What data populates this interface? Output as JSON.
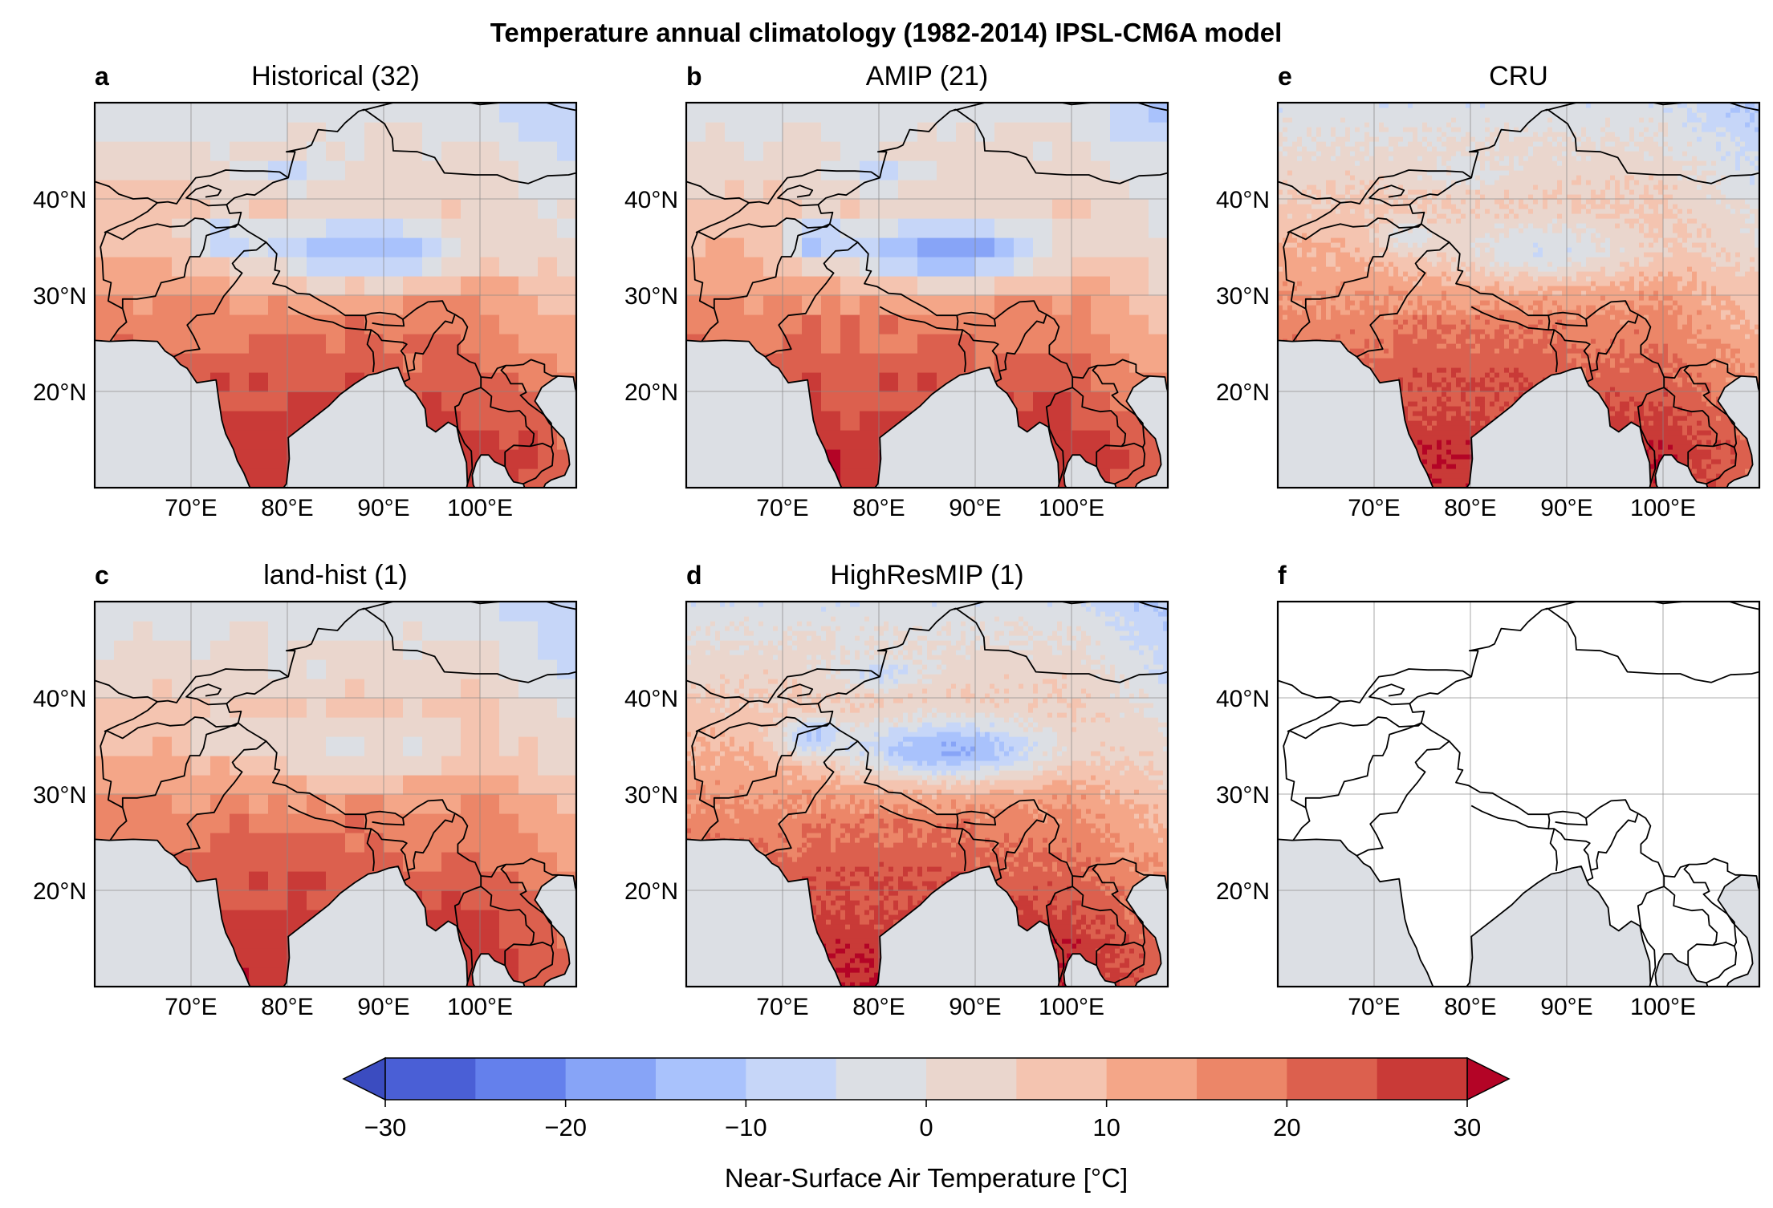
{
  "title": "Temperature annual climatology (1982-2014) IPSL-CM6A model",
  "panels": [
    {
      "letter": "a",
      "title": "Historical (32)",
      "field": "coarse",
      "cold": 1.0
    },
    {
      "letter": "b",
      "title": "AMIP (21)",
      "field": "coarse",
      "cold": 1.15
    },
    {
      "letter": "e",
      "title": "CRU",
      "field": "fine",
      "cold": 0.55
    },
    {
      "letter": "c",
      "title": "land-hist (1)",
      "field": "coarse",
      "cold": 0.45
    },
    {
      "letter": "d",
      "title": "HighResMIP (1)",
      "field": "fine",
      "cold": 1.0
    },
    {
      "letter": "f",
      "title": "",
      "field": "none",
      "cold": 0
    }
  ],
  "map": {
    "lon_range": [
      60,
      110
    ],
    "lat_range": [
      10,
      50
    ],
    "lon_ticks": [
      "70°E",
      "80°E",
      "90°E",
      "100°E"
    ],
    "lon_tick_values": [
      70,
      80,
      90,
      100
    ],
    "lat_ticks": [
      "40°N",
      "30°N",
      "20°N"
    ],
    "lat_tick_values": [
      40,
      30,
      20
    ],
    "ocean_color": "#dcdfe4",
    "border_color": "#000000"
  },
  "colorbar": {
    "label": "Near-Surface Air Temperature [°C]",
    "tick_labels": [
      "−30",
      "−20",
      "−10",
      "0",
      "10",
      "20",
      "30"
    ],
    "tick_values": [
      -30,
      -20,
      -10,
      0,
      10,
      20,
      30
    ],
    "range": [
      -30,
      30
    ],
    "step": 5,
    "colors": [
      "#4a5fd6",
      "#6480ec",
      "#87a4f7",
      "#a9c2fc",
      "#c6d6f8",
      "#dcdfe4",
      "#ead6cd",
      "#f4c4b0",
      "#f4a688",
      "#ec8668",
      "#dc604e",
      "#c93a37"
    ],
    "under_color": "#3b4cc0",
    "over_color": "#b40426"
  }
}
